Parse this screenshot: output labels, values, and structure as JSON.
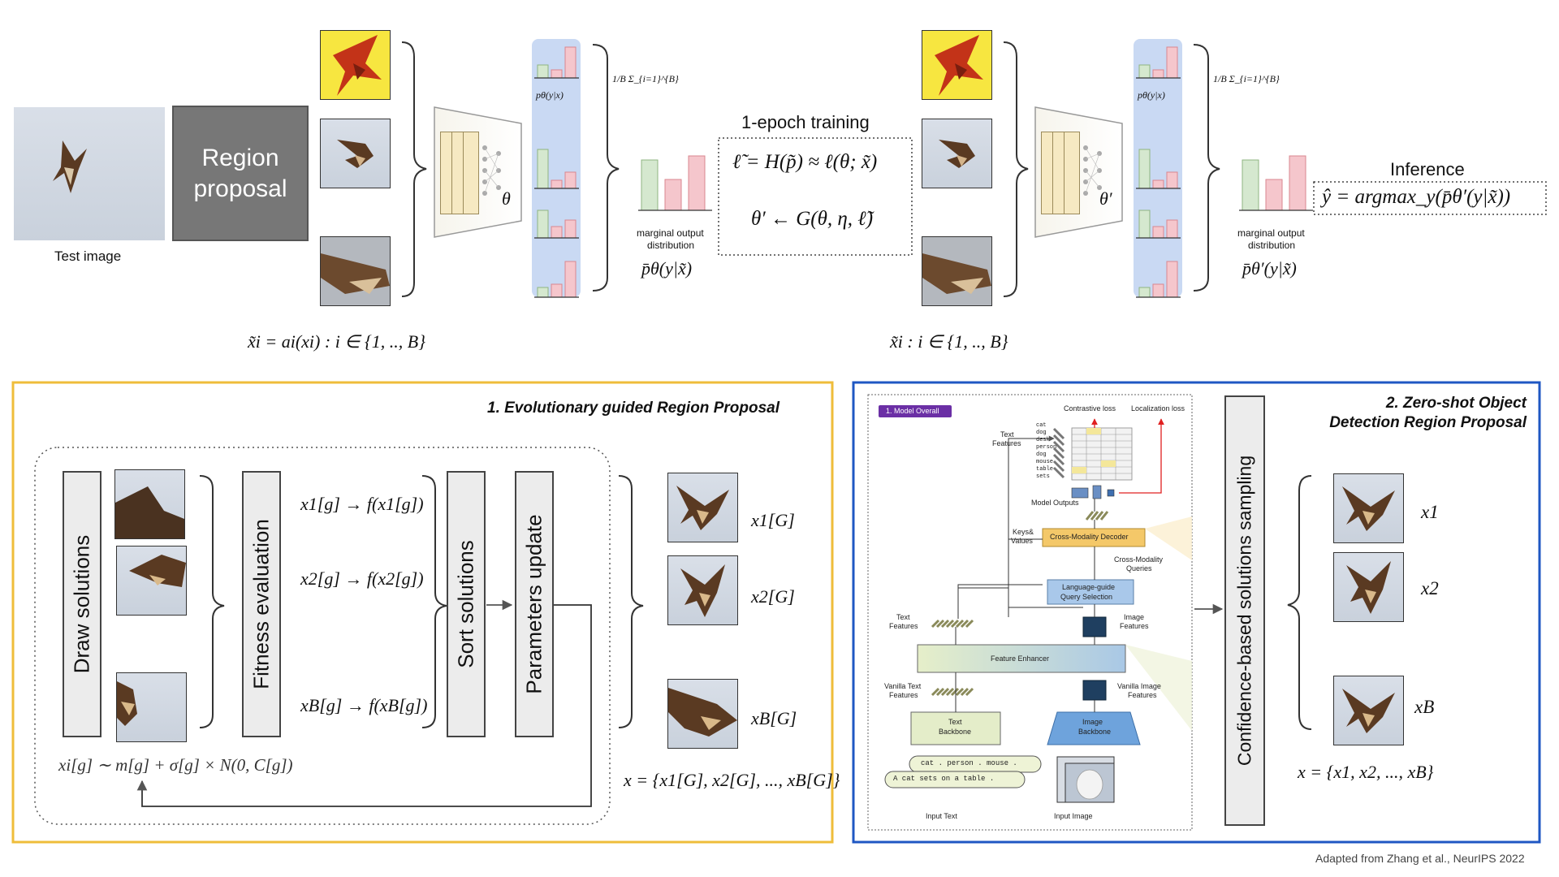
{
  "top": {
    "test_image_label": "Test image",
    "region_proposal": [
      "Region",
      "proposal"
    ],
    "theta": "θ",
    "theta_prime": "θ′",
    "p_label": "pθ(y|x)",
    "p_label_prime": "pθ(y|x)",
    "sum_left": "1/B Σ_{i=1}^{B}",
    "sum_right": "1/B Σ_{i=1}^{B}",
    "marginal_label": [
      "marginal output",
      "distribution"
    ],
    "marginal_formula_left": "p̄θ(y|x̃)",
    "marginal_formula_right": "p̄θ′(y|x̃)",
    "training_title": "1-epoch training",
    "loss_formula": "ℓ̃ = H(p̃) ≈ ℓ(θ; x̃)",
    "update_formula": "θ′ ← G(θ, η, ℓ̃)",
    "inference_title": "Inference",
    "inference_formula": "ŷ = argmax_y(p̄θ′(y|x̃))",
    "aug_formula_left": "x̃i = ai(xi) :  i ∈ {1, .., B}",
    "aug_formula_right": "x̃i :  i ∈ {1, .., B}"
  },
  "evo": {
    "title": "1. Evolutionary guided Region Proposal",
    "draw": "Draw solutions",
    "fitness": "Fitness evaluation",
    "sort": "Sort solutions",
    "update": "Parameters update",
    "f1": "x1[g] → f(x1[g])",
    "f2": "x2[g] → f(x2[g])",
    "fB": "xB[g] → f(xB[g])",
    "sample": "xi[g] ∼ m[g] + σ[g] × N(0, C[g])",
    "out1": "x1[G]",
    "out2": "x2[G]",
    "outB": "xB[G]",
    "set": "x = {x1[G], x2[G], ..., xB[G]}"
  },
  "zs": {
    "title": [
      "2. Zero-shot Object",
      "Detection Region Proposal"
    ],
    "sampling": "Confidence-based solutions sampling",
    "x1": "x1",
    "x2": "x2",
    "xB": "xB",
    "set": "x = {x1, x2, ..., xB}",
    "gd": {
      "badge": "1. Model Overall",
      "contrastive": "Contrastive loss",
      "localization": "Localization loss",
      "text_features": [
        "Text",
        "Features"
      ],
      "words": [
        "cat",
        "dog",
        "desk",
        "person",
        "dog",
        "mouse",
        "table",
        "sets"
      ],
      "model_outputs": "Model Outputs",
      "keys_values": [
        "Keys&",
        "Values"
      ],
      "decoder": "Cross-Modality Decoder",
      "cm_queries": [
        "Cross-Modality",
        "Queries"
      ],
      "lgqs": [
        "Language-guide",
        "Query Selection"
      ],
      "text_features2": [
        "Text",
        "Features"
      ],
      "image_features": [
        "Image",
        "Features"
      ],
      "enhancer": "Feature Enhancer",
      "vanilla_text": [
        "Vanilla Text",
        "Features"
      ],
      "vanilla_image": [
        "Vanilla Image",
        "Features"
      ],
      "text_backbone": [
        "Text",
        "Backbone"
      ],
      "image_backbone": [
        "Image",
        "Backbone"
      ],
      "prompt1": "cat . person . mouse .",
      "prompt2": "A cat sets on a table .",
      "input_text": "Input Text",
      "input_image": "Input Image"
    }
  },
  "caption": "Adapted from Zhang et al., NeurIPS 2022",
  "colors": {
    "yellow_border": "#efbd3a",
    "blue_border": "#1f57c3",
    "blue_column": "#c9d9f3",
    "bar_green": "#d5e8cf",
    "bar_pink": "#f5c6cc",
    "bar_red_edge": "#d9878f"
  }
}
